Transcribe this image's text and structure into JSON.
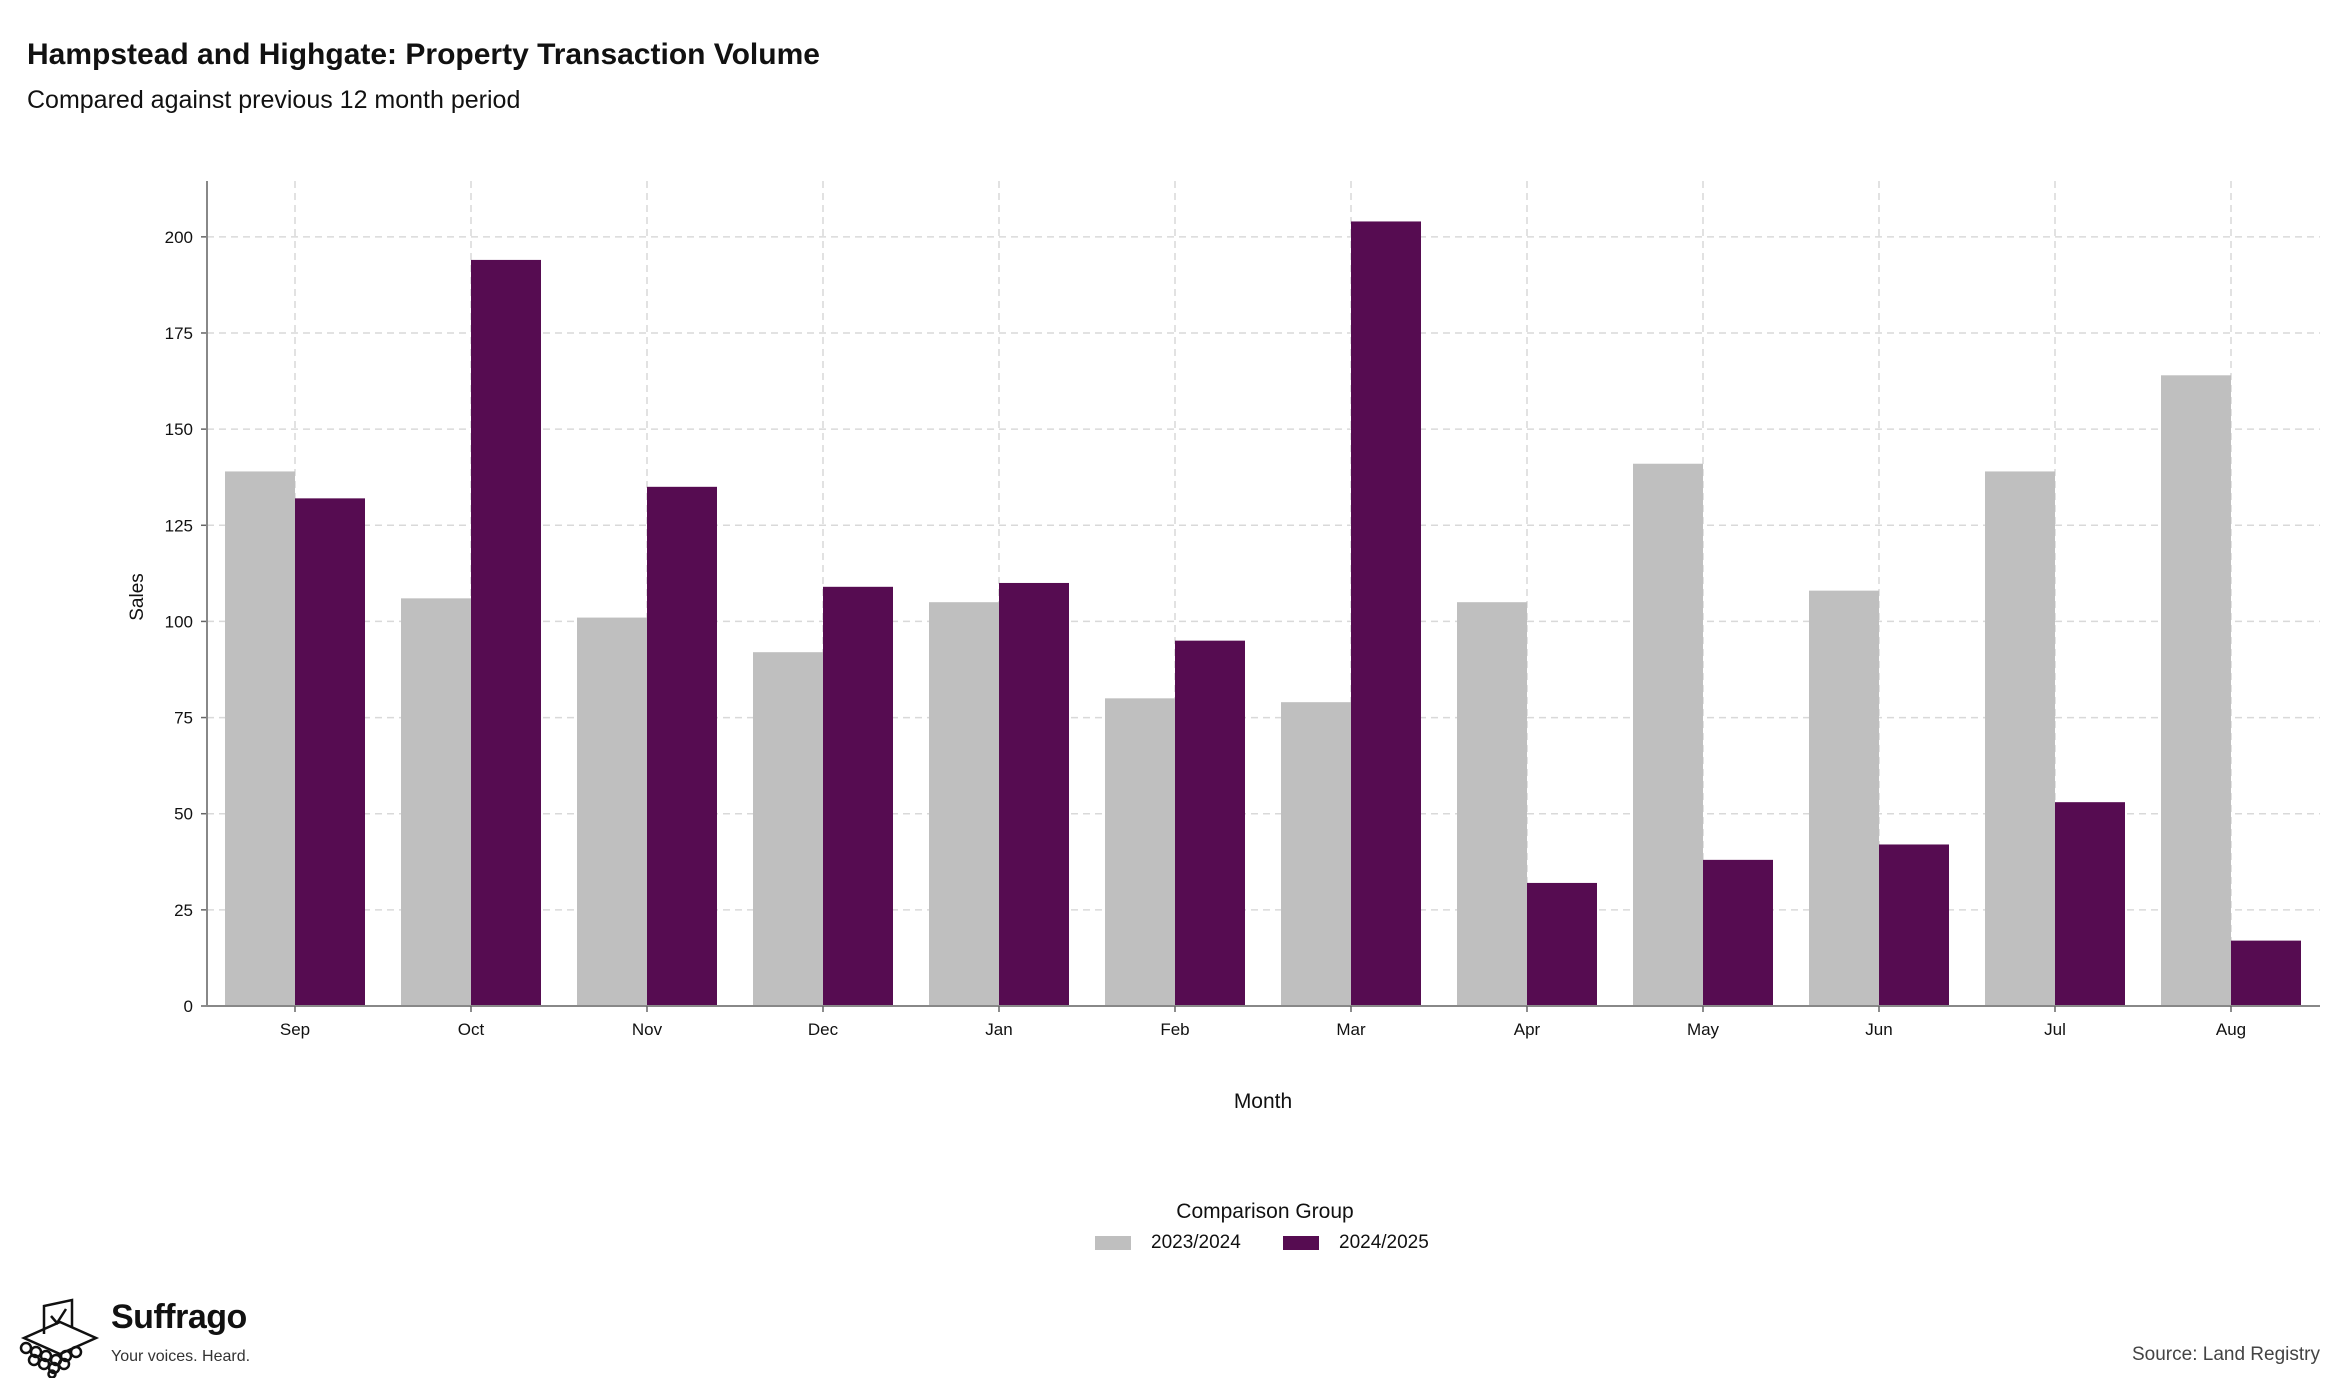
{
  "title": "Hampstead and Highgate: Property Transaction Volume",
  "subtitle": "Compared against previous 12 month period",
  "chart_data": {
    "type": "bar",
    "categories": [
      "Sep",
      "Oct",
      "Nov",
      "Dec",
      "Jan",
      "Feb",
      "Mar",
      "Apr",
      "May",
      "Jun",
      "Jul",
      "Aug"
    ],
    "series": [
      {
        "name": "2023/2024",
        "color": "#bfbfbf",
        "values": [
          139,
          106,
          101,
          92,
          105,
          80,
          79,
          105,
          141,
          108,
          139,
          164
        ]
      },
      {
        "name": "2024/2025",
        "color": "#560c51",
        "values": [
          132,
          194,
          135,
          109,
          110,
          95,
          204,
          32,
          38,
          42,
          53,
          17
        ]
      }
    ],
    "xlabel": "Month",
    "ylabel": "Sales",
    "ylim": [
      0,
      214
    ],
    "yticks": [
      0,
      25,
      50,
      75,
      100,
      125,
      150,
      175,
      200
    ],
    "grid": true,
    "legend_position": "bottom-center",
    "legend_title": "Comparison Group"
  },
  "branding": {
    "name": "Suffrago",
    "tagline": "Your voices. Heard.",
    "logo_icon": "ballot-box-icon"
  },
  "source": "Source: Land Registry"
}
